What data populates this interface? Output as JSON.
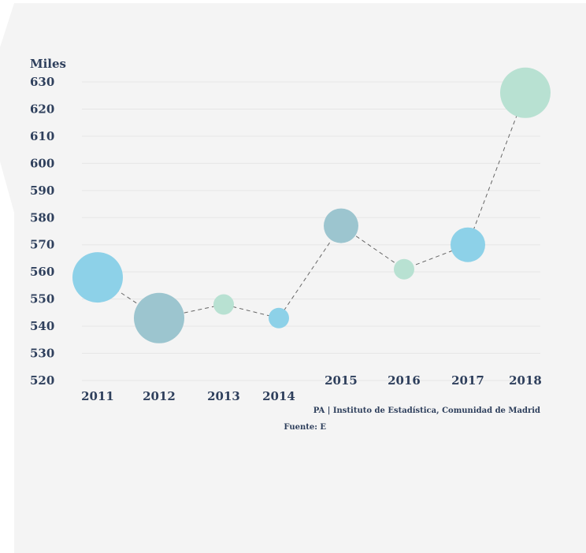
{
  "chart_data": {
    "type": "scatter",
    "ylabel": "Miles",
    "x": [
      "2011",
      "2012",
      "2013",
      "2014",
      "2015",
      "2016",
      "2017",
      "2018"
    ],
    "values": [
      558,
      543,
      548,
      543,
      577,
      561,
      570,
      626
    ],
    "ylim": [
      520,
      630
    ],
    "yticks": [
      520,
      530,
      540,
      550,
      560,
      570,
      580,
      590,
      600,
      610,
      620,
      630
    ],
    "grid": true,
    "connector": "dashed",
    "colors": [
      "#8dd1e8",
      "#9cc5cf",
      "#b8e1d2",
      "#8dd1e8",
      "#9cc5cf",
      "#b8e1d2",
      "#8dd1e8",
      "#b8e1d2"
    ],
    "bubble_size_rank": [
      3,
      3,
      1,
      1,
      2,
      1,
      2,
      3
    ]
  },
  "source": {
    "line1": "PA | Instituto de Estadística, Comunidad de Madrid",
    "line2": "Fuente: E"
  }
}
